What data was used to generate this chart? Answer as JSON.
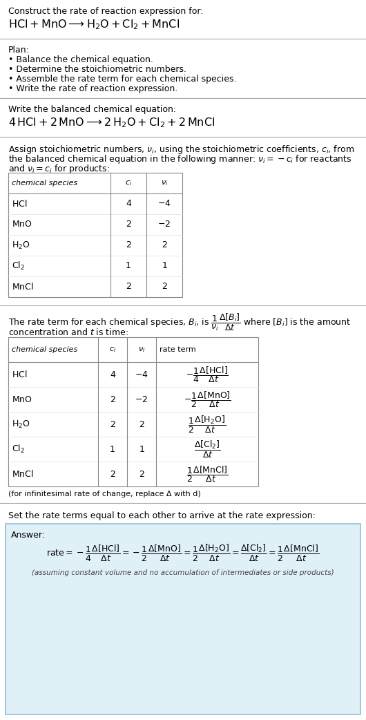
{
  "bg_color": "#ffffff",
  "text_color": "#000000",
  "section1_title": "Construct the rate of reaction expression for:",
  "plan_title": "Plan:",
  "plan_items": [
    "• Balance the chemical equation.",
    "• Determine the stoichiometric numbers.",
    "• Assemble the rate term for each chemical species.",
    "• Write the rate of reaction expression."
  ],
  "balanced_title": "Write the balanced chemical equation:",
  "table1_headers": [
    "chemical species",
    "c_i",
    "v_i"
  ],
  "table1_rows": [
    [
      "HCl",
      "4",
      "-4"
    ],
    [
      "MnO",
      "2",
      "-2"
    ],
    [
      "H_2O",
      "2",
      "2"
    ],
    [
      "Cl_2",
      "1",
      "1"
    ],
    [
      "MnCl",
      "2",
      "2"
    ]
  ],
  "table2_headers": [
    "chemical species",
    "c_i",
    "v_i",
    "rate term"
  ],
  "table2_rows": [
    [
      "HCl",
      "4",
      "-4"
    ],
    [
      "MnO",
      "2",
      "-2"
    ],
    [
      "H_2O",
      "2",
      "2"
    ],
    [
      "Cl_2",
      "1",
      "1"
    ],
    [
      "MnCl",
      "2",
      "2"
    ]
  ],
  "infinitesimal_note": "(for infinitesimal rate of change, replace Δ with d)",
  "set_equal_text": "Set the rate terms equal to each other to arrive at the rate expression:",
  "answer_box_color": "#dff0f7",
  "answer_box_border": "#90bfd4",
  "answer_label": "Answer:",
  "assuming_note": "(assuming constant volume and no accumulation of intermediates or side products)",
  "fs": 9.0,
  "fs_small": 8.0,
  "fs_reaction": 11.5
}
